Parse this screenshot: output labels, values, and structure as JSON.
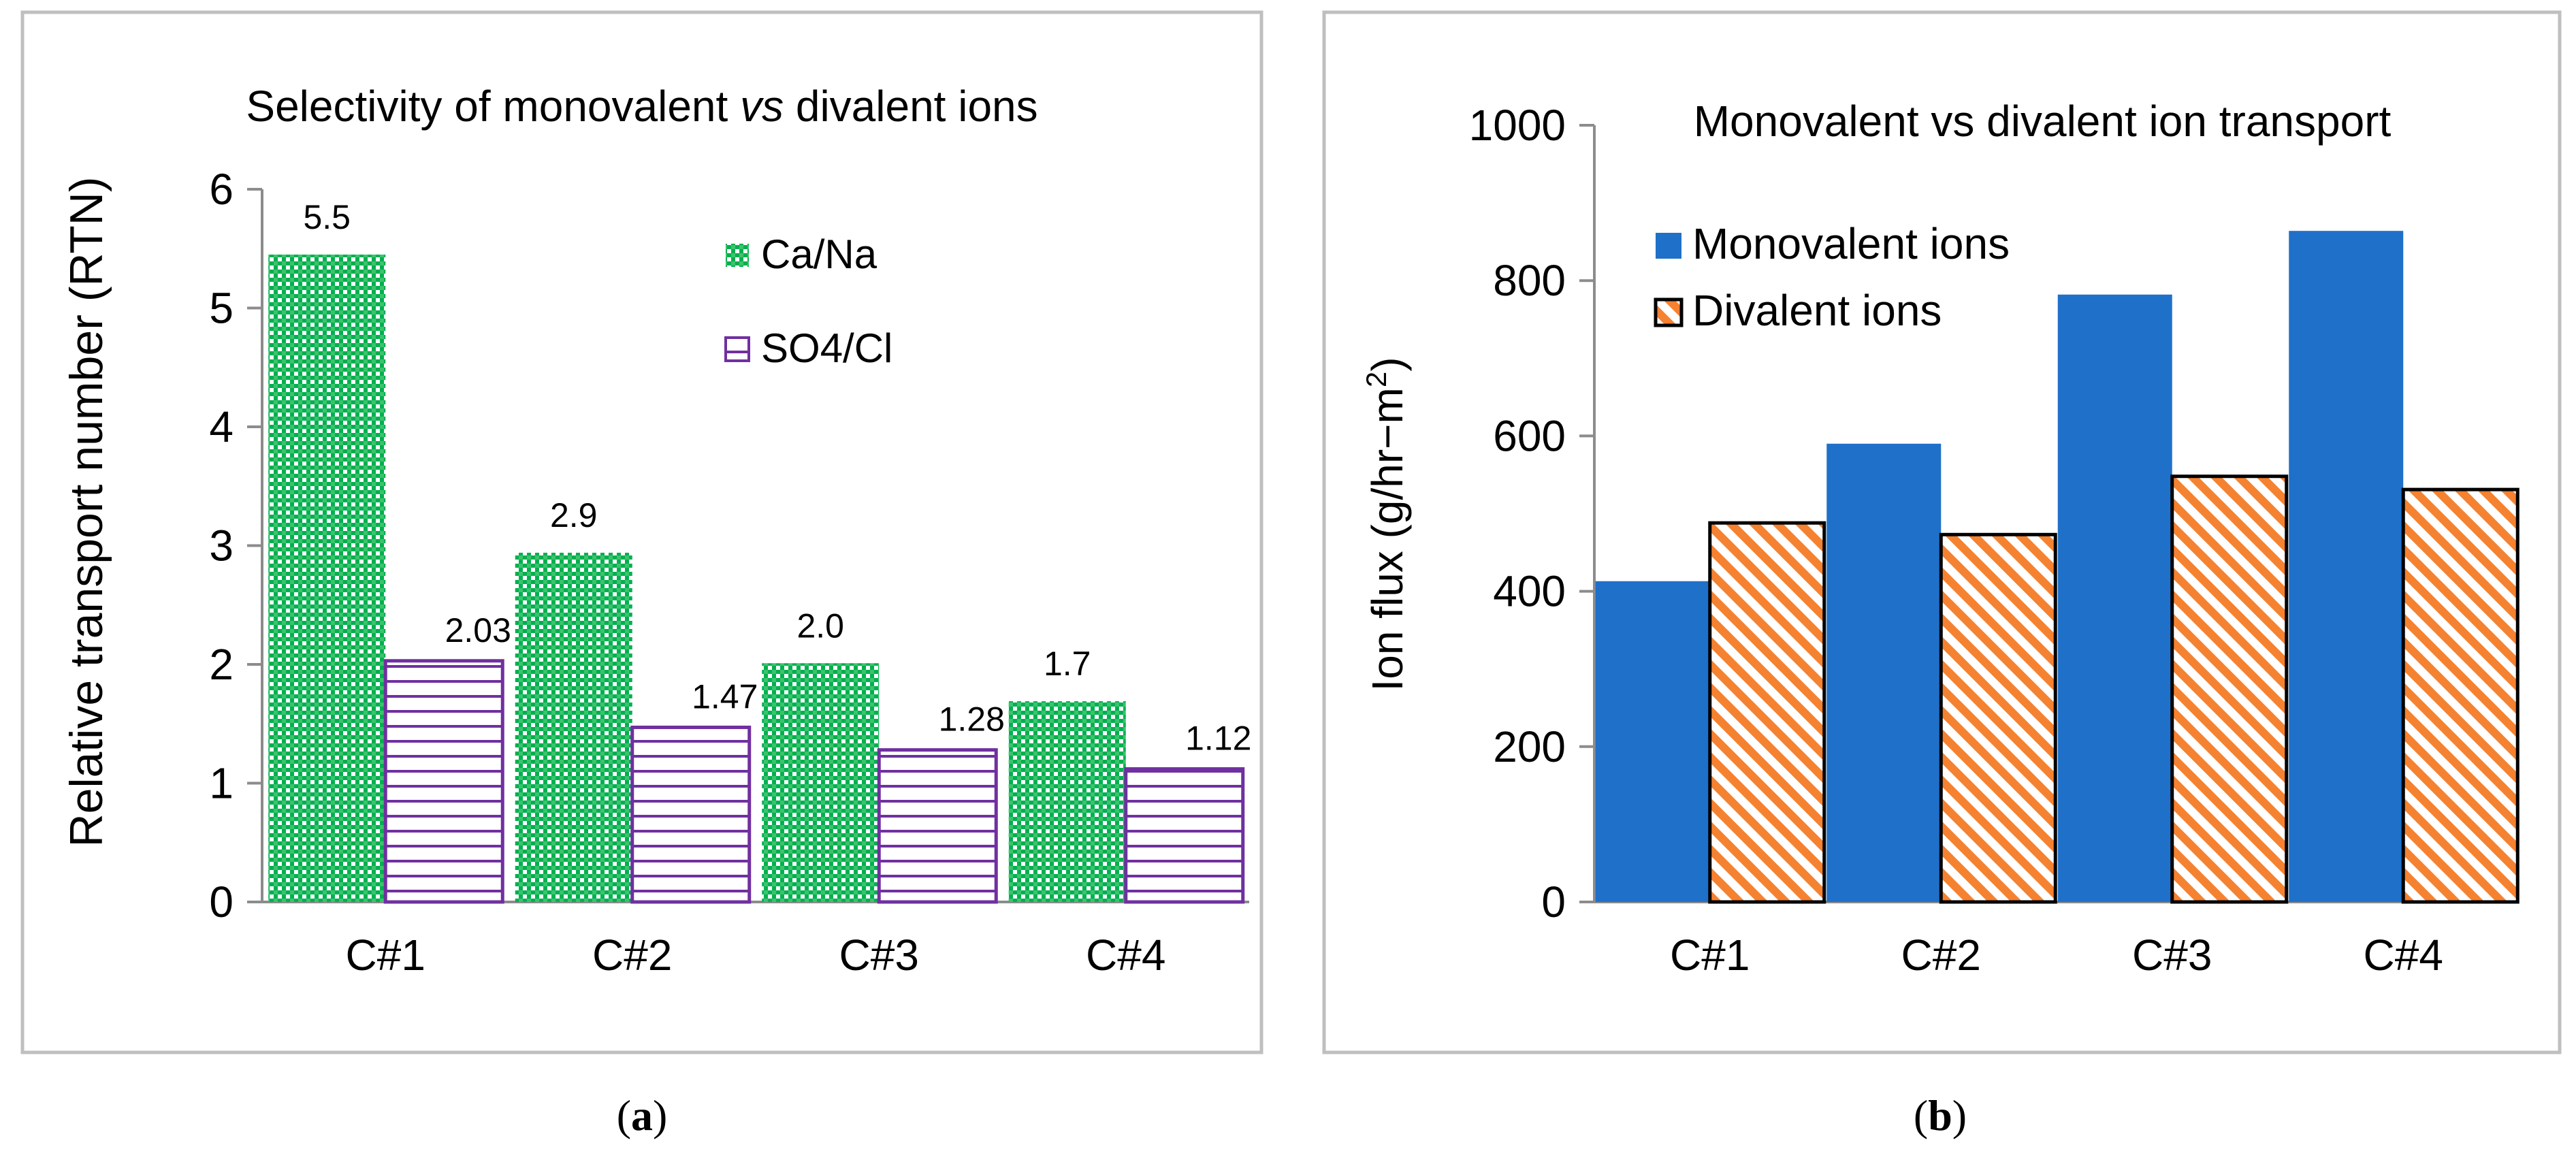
{
  "chart_data": [
    {
      "type": "bar",
      "panel_label": "a",
      "title_parts": [
        "Selectivity of monovalent ",
        "vs",
        " divalent ions"
      ],
      "ylabel": "Relative transport number (RTN)",
      "xlabel": "",
      "categories": [
        "C#1",
        "C#2",
        "C#3",
        "C#4"
      ],
      "ylim": [
        0,
        6
      ],
      "yticks": [
        0,
        1,
        2,
        3,
        4,
        5,
        6
      ],
      "grid": false,
      "legend_position": "top-right",
      "series": [
        {
          "name": "Ca/Na",
          "values": [
            5.45,
            2.94,
            2.01,
            1.69
          ],
          "labels": [
            "5.5",
            "2.9",
            "2.0",
            "1.7"
          ],
          "color": "#00b050",
          "pattern": "checker"
        },
        {
          "name": "SO4/Cl",
          "values": [
            2.03,
            1.47,
            1.28,
            1.12
          ],
          "labels": [
            "2.03",
            "1.47",
            "1.28",
            "1.12"
          ],
          "color": "#7030a0",
          "pattern": "horizontal-stripes"
        }
      ]
    },
    {
      "type": "bar",
      "panel_label": "b",
      "title": "Monovalent vs divalent ion transport",
      "ylabel_main": "Ion flux (g/hr−m",
      "ylabel_sup": "2",
      "ylabel_end": ")",
      "xlabel": "",
      "categories": [
        "C#1",
        "C#2",
        "C#3",
        "C#4"
      ],
      "ylim": [
        0,
        1000
      ],
      "yticks": [
        0,
        200,
        400,
        600,
        800,
        1000
      ],
      "grid": false,
      "legend_position": "top-left",
      "series": [
        {
          "name": "Monovalent ions",
          "values": [
            413,
            590,
            782,
            864
          ],
          "color": "#1f70c8",
          "pattern": "solid"
        },
        {
          "name": "Divalent ions",
          "values": [
            488,
            473,
            548,
            531
          ],
          "color": "#f58231",
          "pattern": "diagonal-stripes"
        }
      ]
    }
  ]
}
